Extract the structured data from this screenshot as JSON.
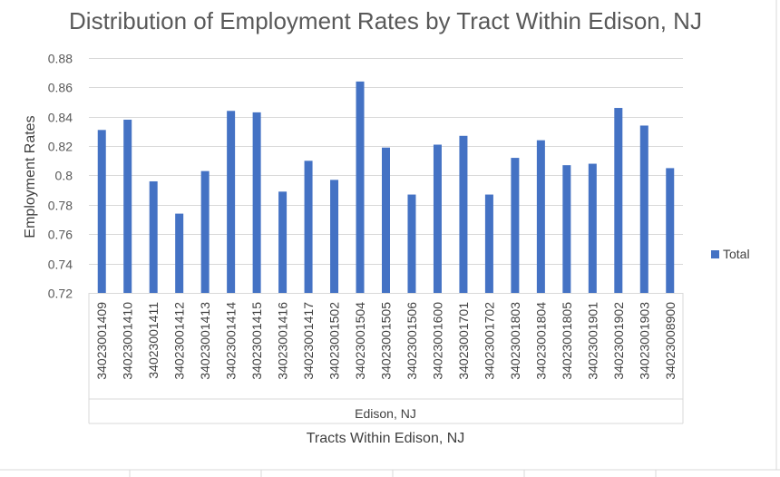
{
  "chart_data": {
    "type": "bar",
    "title": "Distribution of Employment Rates by Tract Within Edison, NJ",
    "xlabel": "Tracts Within Edison, NJ",
    "ylabel": "Employment Rates",
    "group_label": "Edison, NJ",
    "ylim": [
      0.72,
      0.88
    ],
    "yticks": [
      "0.88",
      "0.86",
      "0.84",
      "0.82",
      "0.8",
      "0.78",
      "0.76",
      "0.74",
      "0.72"
    ],
    "ytick_values": [
      0.88,
      0.86,
      0.84,
      0.82,
      0.8,
      0.78,
      0.76,
      0.74,
      0.72
    ],
    "grid": true,
    "legend_position": "right",
    "categories": [
      "34023001409",
      "34023001410",
      "34023001411",
      "34023001412",
      "34023001413",
      "34023001414",
      "34023001415",
      "34023001416",
      "34023001417",
      "34023001502",
      "34023001504",
      "34023001505",
      "34023001506",
      "34023001600",
      "34023001701",
      "34023001702",
      "34023001803",
      "34023001804",
      "34023001805",
      "34023001901",
      "34023001902",
      "34023001903",
      "34023008900"
    ],
    "series": [
      {
        "name": "Total",
        "color": "#4472c4",
        "values": [
          0.831,
          0.838,
          0.796,
          0.774,
          0.803,
          0.844,
          0.843,
          0.789,
          0.81,
          0.797,
          0.864,
          0.819,
          0.787,
          0.821,
          0.827,
          0.787,
          0.812,
          0.824,
          0.807,
          0.808,
          0.846,
          0.834,
          0.805
        ]
      }
    ]
  }
}
